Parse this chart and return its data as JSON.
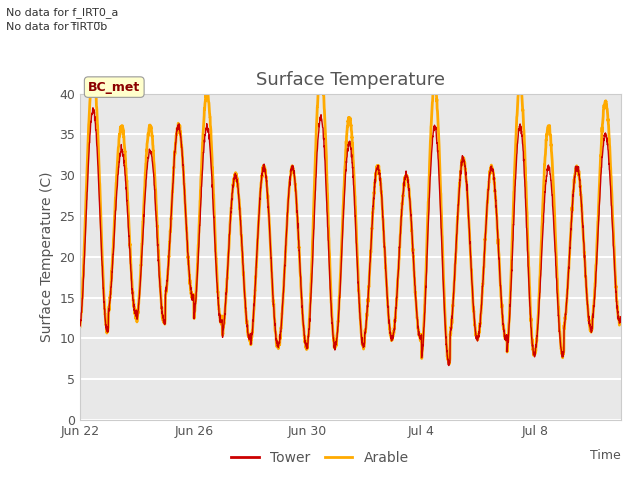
{
  "title": "Surface Temperature",
  "ylabel": "Surface Temperature (C)",
  "xlabel": "Time",
  "note_line1": "No data for f_IRT0_a",
  "note_line2": "No data for f̅IRT0̅b",
  "legend_label_box": "BC_met",
  "legend_items": [
    "Tower",
    "Arable"
  ],
  "tower_color": "#cc0000",
  "arable_color": "#ffaa00",
  "ylim": [
    0,
    40
  ],
  "yticks": [
    0,
    5,
    10,
    15,
    20,
    25,
    30,
    35,
    40
  ],
  "plot_bg_color": "#e8e8e8",
  "grid_color": "#ffffff",
  "x_tick_labels": [
    "Jun 22",
    "Jun 26",
    "Jun 30",
    "Jul 4",
    "Jul 8"
  ],
  "x_tick_positions": [
    0,
    4,
    8,
    12,
    16
  ],
  "n_days": 19,
  "daily_max": [
    38,
    33,
    33,
    36,
    36,
    30,
    31,
    31,
    37,
    34,
    31,
    30,
    36,
    32,
    31,
    36,
    31,
    31,
    35
  ],
  "daily_min": [
    11,
    13,
    12,
    15,
    12,
    10,
    9,
    9,
    9,
    9,
    10,
    10,
    7,
    10,
    10,
    8,
    8,
    11,
    12
  ],
  "arable_extra_max": [
    5,
    3,
    3,
    0,
    4,
    0,
    0,
    0,
    6,
    3,
    0,
    0,
    5,
    0,
    0,
    5,
    5,
    0,
    4
  ]
}
